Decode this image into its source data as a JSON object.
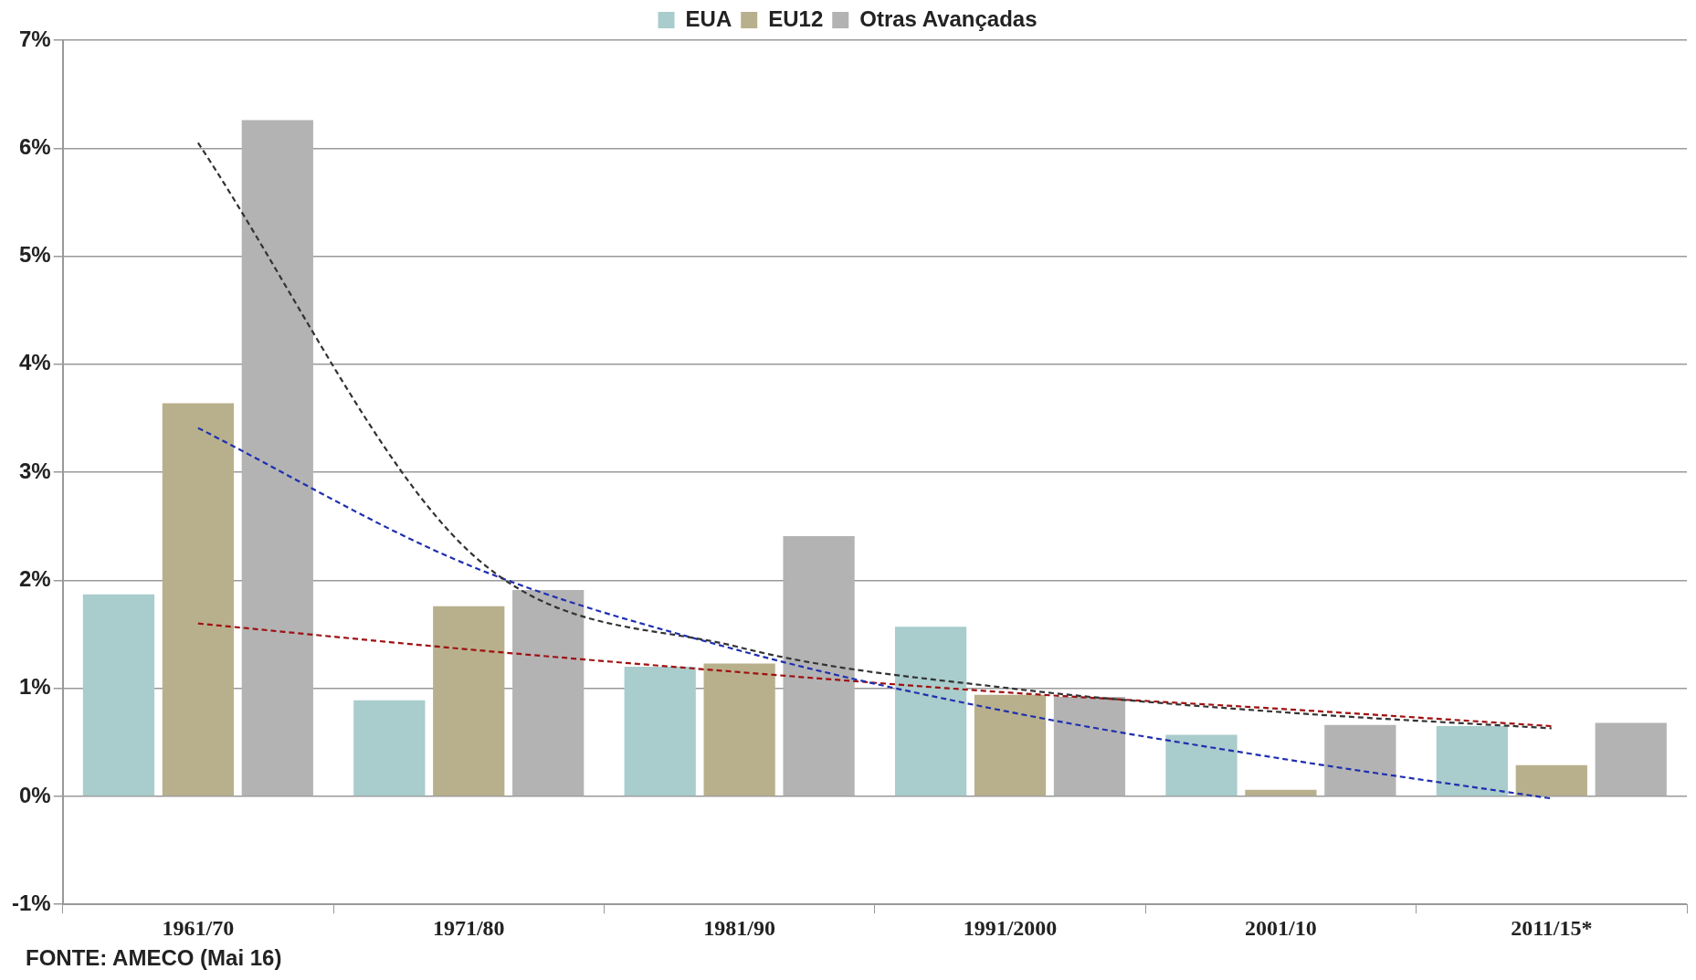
{
  "chart_data": {
    "type": "bar",
    "categories": [
      "1961/70",
      "1971/80",
      "1981/90",
      "1991/2000",
      "2001/10",
      "2011/15*"
    ],
    "series": [
      {
        "name": "EUA",
        "color": "#a9cccc",
        "values": [
          1.87,
          0.89,
          1.2,
          1.57,
          0.57,
          0.65
        ]
      },
      {
        "name": "EU12",
        "color": "#b8b08c",
        "values": [
          3.64,
          1.76,
          1.23,
          0.94,
          0.06,
          0.29
        ]
      },
      {
        "name": "Otras Avançadas",
        "color": "#b3b3b4",
        "values": [
          6.26,
          1.91,
          2.41,
          0.92,
          0.66,
          0.68
        ]
      },
      {
        "type": "line",
        "line_style": "dashed",
        "color": "#333333",
        "values": [
          6.05,
          2.27,
          1.38,
          1.0,
          0.78,
          0.63
        ]
      },
      {
        "type": "line",
        "line_style": "dashed",
        "color": "#1f2fb0",
        "values": [
          3.41,
          2.14,
          1.35,
          0.78,
          0.35,
          -0.02
        ]
      },
      {
        "type": "line",
        "line_style": "dashed",
        "color": "#a01010",
        "values": [
          1.6,
          1.36,
          1.15,
          0.96,
          0.81,
          0.65
        ]
      }
    ],
    "ylim": [
      -1,
      7
    ],
    "yticks": [
      {
        "value": -1,
        "label": "-1%"
      },
      {
        "value": 0,
        "label": "0%"
      },
      {
        "value": 1,
        "label": "1%"
      },
      {
        "value": 2,
        "label": "2%"
      },
      {
        "value": 3,
        "label": "3%"
      },
      {
        "value": 4,
        "label": "4%"
      },
      {
        "value": 5,
        "label": "5%"
      },
      {
        "value": 6,
        "label": "6%"
      },
      {
        "value": 7,
        "label": "7%"
      }
    ],
    "grid": "y",
    "legend": "top",
    "marker": "none",
    "annotations": [
      "FONTE: AMECO (Mai 16)"
    ]
  }
}
